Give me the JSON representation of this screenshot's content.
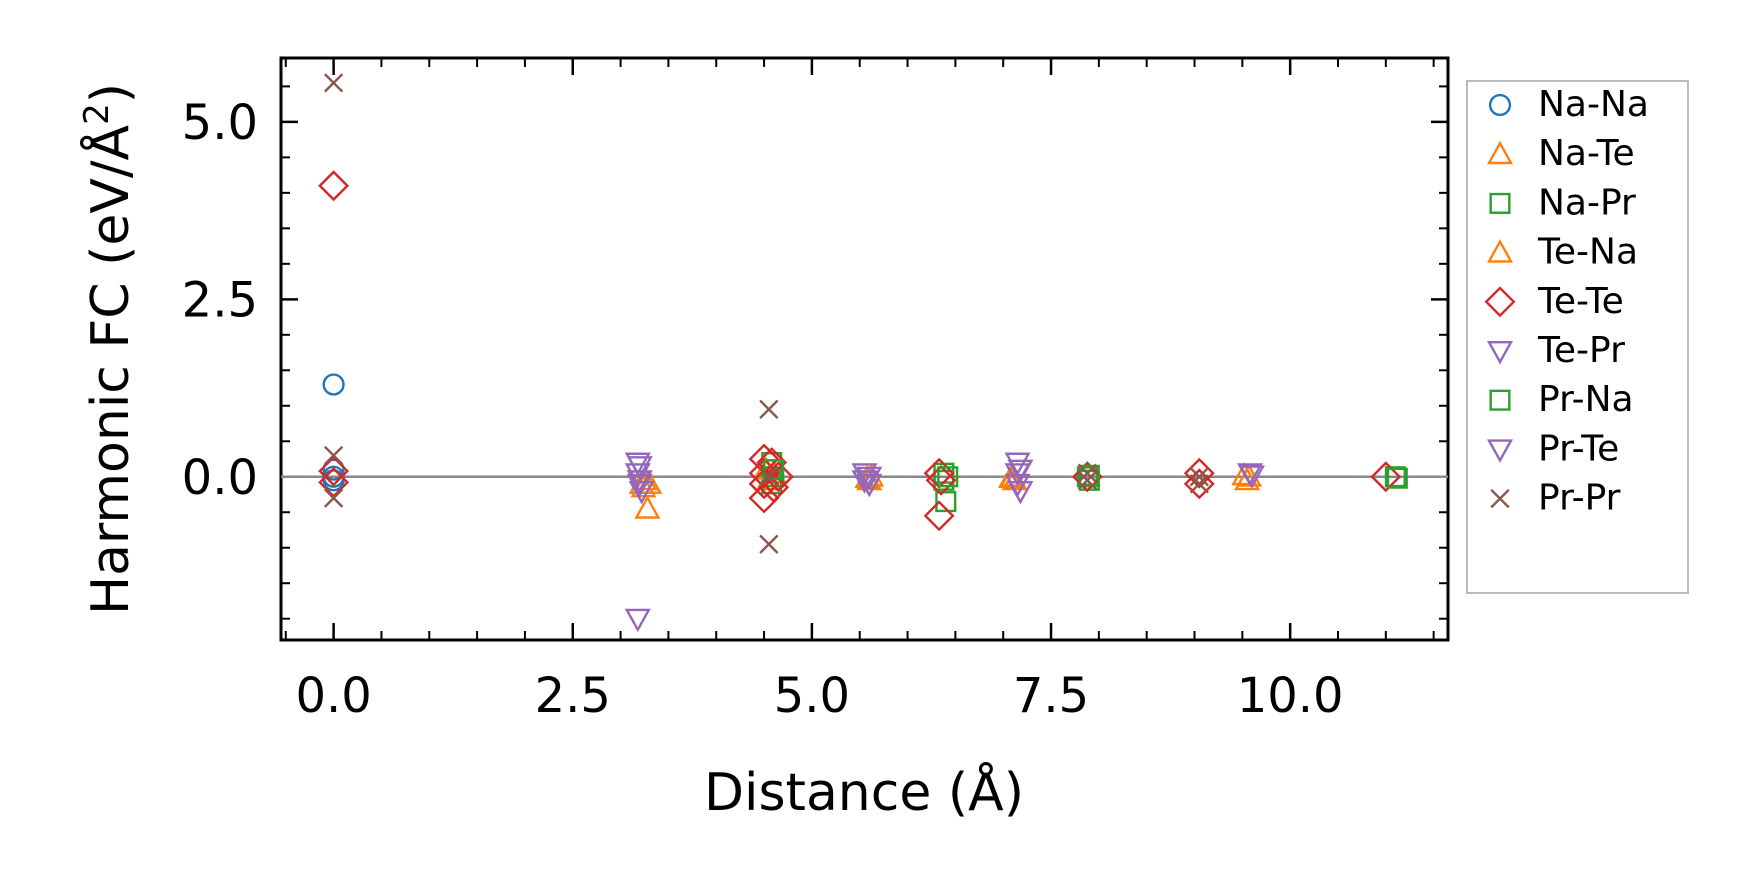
{
  "chart_data": {
    "type": "scatter",
    "xlabel": "Distance (Å)",
    "ylabel": "Harmonic FC (eV/Å2)",
    "ylabel_parts": {
      "main": "Harmonic FC (eV/Å",
      "sup": "2",
      "close": ")"
    },
    "xlim": [
      -0.55,
      11.65
    ],
    "ylim": [
      -2.3,
      5.9
    ],
    "xticks": [
      0.0,
      2.5,
      5.0,
      7.5,
      10.0
    ],
    "xtick_labels": [
      "0.0",
      "2.5",
      "5.0",
      "7.5",
      "10.0"
    ],
    "yticks": [
      0.0,
      2.5,
      5.0
    ],
    "ytick_labels": [
      "0.0",
      "2.5",
      "5.0"
    ],
    "x_minor_step": 0.5,
    "y_minor_step": 0.5,
    "zero_line": 0.0,
    "legend_position": "right-outside",
    "series": [
      {
        "name": "Na-Na",
        "marker": "circle",
        "color": "#1f77b4",
        "points": [
          [
            0,
            1.3
          ],
          [
            0,
            0.1
          ],
          [
            0,
            0.0
          ],
          [
            0,
            -0.05
          ]
        ]
      },
      {
        "name": "Na-Te",
        "marker": "triangle-up",
        "color": "#ff7f0e",
        "points": [
          [
            3.28,
            -0.45
          ],
          [
            3.3,
            -0.1
          ],
          [
            3.25,
            -0.05
          ],
          [
            4.6,
            0.05
          ],
          [
            4.55,
            -0.05
          ],
          [
            5.62,
            0.0
          ],
          [
            5.6,
            -0.05
          ],
          [
            7.1,
            0.0
          ],
          [
            7.12,
            -0.05
          ],
          [
            9.55,
            -0.05
          ],
          [
            9.57,
            0.0
          ]
        ]
      },
      {
        "name": "Na-Pr",
        "marker": "square",
        "color": "#2ca02c",
        "points": [
          [
            4.58,
            0.2
          ],
          [
            4.58,
            -0.1
          ],
          [
            4.6,
            0.0
          ],
          [
            6.38,
            0.05
          ],
          [
            6.4,
            -0.35
          ],
          [
            6.38,
            -0.05
          ],
          [
            7.88,
            0.0
          ],
          [
            7.9,
            -0.05
          ],
          [
            11.1,
            0.0
          ]
        ]
      },
      {
        "name": "Te-Na",
        "marker": "triangle-up",
        "color": "#ff7f0e",
        "points": [
          [
            3.22,
            -0.1
          ],
          [
            3.24,
            -0.15
          ],
          [
            4.52,
            0.1
          ],
          [
            5.58,
            -0.02
          ],
          [
            7.08,
            -0.02
          ],
          [
            9.52,
            0.02
          ]
        ]
      },
      {
        "name": "Te-Te",
        "marker": "diamond",
        "color": "#d62728",
        "points": [
          [
            0,
            4.1
          ],
          [
            0,
            0.08
          ],
          [
            0,
            -0.08
          ],
          [
            4.5,
            0.25
          ],
          [
            4.5,
            0.05
          ],
          [
            4.5,
            -0.1
          ],
          [
            4.5,
            -0.3
          ],
          [
            4.58,
            0.2
          ],
          [
            4.6,
            -0.15
          ],
          [
            4.65,
            0.0
          ],
          [
            6.33,
            0.05
          ],
          [
            6.33,
            -0.55
          ],
          [
            6.35,
            -0.05
          ],
          [
            7.88,
            0.0
          ],
          [
            9.05,
            0.05
          ],
          [
            9.05,
            -0.1
          ],
          [
            11.0,
            0.0
          ]
        ]
      },
      {
        "name": "Te-Pr",
        "marker": "triangle-down",
        "color": "#9467bd",
        "points": [
          [
            3.18,
            0.2
          ],
          [
            3.18,
            0.05
          ],
          [
            3.2,
            -0.1
          ],
          [
            3.18,
            -2.0
          ],
          [
            5.55,
            0.05
          ],
          [
            5.55,
            -0.05
          ],
          [
            7.15,
            0.2
          ],
          [
            7.15,
            0.05
          ],
          [
            7.15,
            -0.1
          ],
          [
            9.58,
            0.05
          ]
        ]
      },
      {
        "name": "Pr-Na",
        "marker": "square",
        "color": "#2ca02c",
        "points": [
          [
            4.6,
            0.1
          ],
          [
            6.42,
            0.0
          ],
          [
            7.9,
            0.02
          ],
          [
            11.12,
            -0.02
          ]
        ]
      },
      {
        "name": "Pr-Te",
        "marker": "triangle-down",
        "color": "#9467bd",
        "points": [
          [
            3.2,
            0.15
          ],
          [
            3.2,
            -0.05
          ],
          [
            3.22,
            -0.2
          ],
          [
            5.6,
            0.0
          ],
          [
            5.6,
            -0.1
          ],
          [
            7.18,
            0.1
          ],
          [
            7.18,
            -0.2
          ],
          [
            9.6,
            0.02
          ]
        ]
      },
      {
        "name": "Pr-Pr",
        "marker": "cross",
        "color": "#8c564b",
        "points": [
          [
            0,
            5.55
          ],
          [
            0,
            0.3
          ],
          [
            0,
            -0.3
          ],
          [
            4.55,
            0.95
          ],
          [
            4.55,
            -0.95
          ],
          [
            4.55,
            0.0
          ],
          [
            7.88,
            0.05
          ],
          [
            7.88,
            -0.05
          ],
          [
            9.05,
            0.0
          ],
          [
            9.05,
            -0.1
          ]
        ]
      }
    ]
  }
}
